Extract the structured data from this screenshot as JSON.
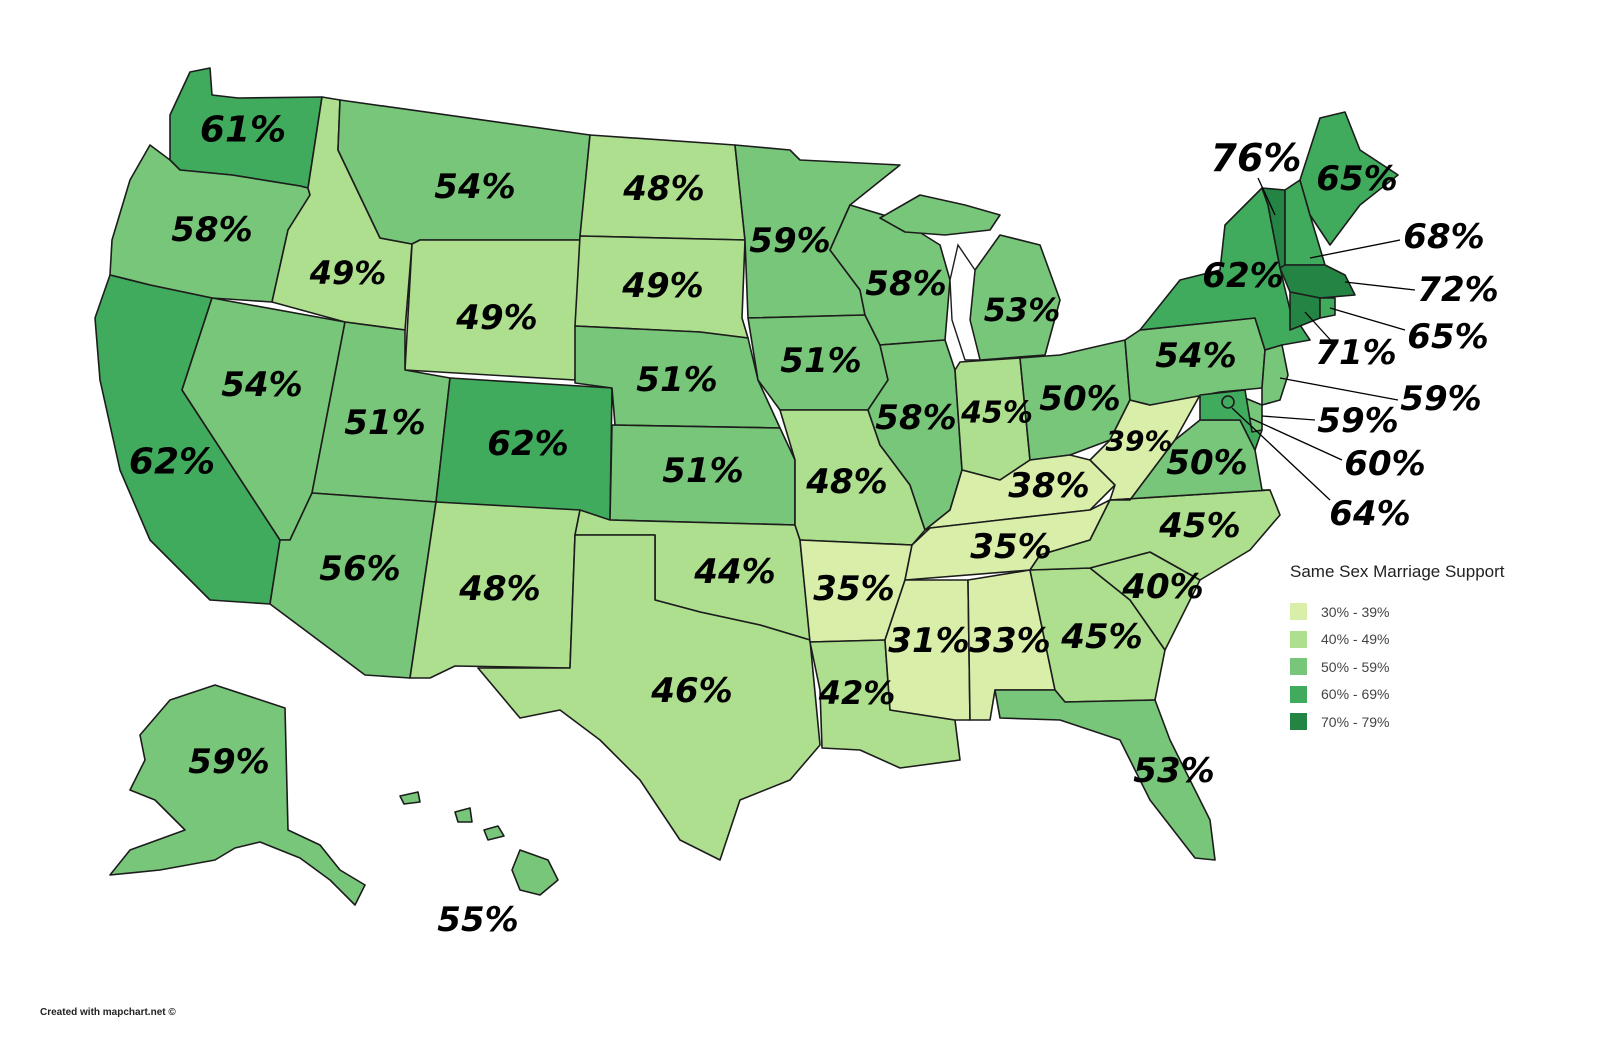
{
  "legend": {
    "title": "Same Sex Marriage Support",
    "bins": [
      {
        "label": "30% - 39%",
        "color": "#d9efa9"
      },
      {
        "label": "40% - 49%",
        "color": "#addf8e"
      },
      {
        "label": "50% - 59%",
        "color": "#78c679"
      },
      {
        "label": "60% - 69%",
        "color": "#41ab5d"
      },
      {
        "label": "70% - 79%",
        "color": "#238443"
      }
    ]
  },
  "credit": "Created with mapchart.net ©",
  "states": {
    "WA": {
      "value": "61%",
      "bin": 3
    },
    "OR": {
      "value": "58%",
      "bin": 2
    },
    "CA": {
      "value": "62%",
      "bin": 3
    },
    "ID": {
      "value": "49%",
      "bin": 1
    },
    "NV": {
      "value": "54%",
      "bin": 2
    },
    "MT": {
      "value": "54%",
      "bin": 2
    },
    "WY": {
      "value": "49%",
      "bin": 1
    },
    "UT": {
      "value": "51%",
      "bin": 2
    },
    "AZ": {
      "value": "56%",
      "bin": 2
    },
    "CO": {
      "value": "62%",
      "bin": 3
    },
    "NM": {
      "value": "48%",
      "bin": 1
    },
    "ND": {
      "value": "48%",
      "bin": 1
    },
    "SD": {
      "value": "49%",
      "bin": 1
    },
    "NE": {
      "value": "51%",
      "bin": 2
    },
    "KS": {
      "value": "51%",
      "bin": 2
    },
    "OK": {
      "value": "44%",
      "bin": 1
    },
    "TX": {
      "value": "46%",
      "bin": 1
    },
    "MN": {
      "value": "59%",
      "bin": 2
    },
    "IA": {
      "value": "51%",
      "bin": 2
    },
    "MO": {
      "value": "48%",
      "bin": 1
    },
    "AR": {
      "value": "35%",
      "bin": 0
    },
    "LA": {
      "value": "42%",
      "bin": 1
    },
    "WI": {
      "value": "58%",
      "bin": 2
    },
    "IL": {
      "value": "58%",
      "bin": 2
    },
    "MI": {
      "value": "53%",
      "bin": 2
    },
    "IN": {
      "value": "45%",
      "bin": 1
    },
    "OH": {
      "value": "50%",
      "bin": 2
    },
    "KY": {
      "value": "38%",
      "bin": 0
    },
    "TN": {
      "value": "35%",
      "bin": 0
    },
    "MS": {
      "value": "31%",
      "bin": 0
    },
    "AL": {
      "value": "33%",
      "bin": 0
    },
    "GA": {
      "value": "45%",
      "bin": 1
    },
    "FL": {
      "value": "53%",
      "bin": 2
    },
    "SC": {
      "value": "40%",
      "bin": 1
    },
    "NC": {
      "value": "45%",
      "bin": 1
    },
    "VA": {
      "value": "50%",
      "bin": 2
    },
    "WV": {
      "value": "39%",
      "bin": 0
    },
    "PA": {
      "value": "54%",
      "bin": 2
    },
    "NY": {
      "value": "62%",
      "bin": 3
    },
    "VT": {
      "value": "76%",
      "bin": 4
    },
    "NH": {
      "value": "68%",
      "bin": 3
    },
    "ME": {
      "value": "65%",
      "bin": 3
    },
    "MA": {
      "value": "72%",
      "bin": 4
    },
    "RI": {
      "value": "65%",
      "bin": 3
    },
    "CT": {
      "value": "71%",
      "bin": 4
    },
    "NJ": {
      "value": "59%",
      "bin": 2
    },
    "DE": {
      "value": "59%",
      "bin": 2
    },
    "MD": {
      "value": "60%",
      "bin": 3
    },
    "DC": {
      "value": "64%",
      "bin": 3
    },
    "AK": {
      "value": "59%",
      "bin": 2
    },
    "HI": {
      "value": "55%",
      "bin": 2
    }
  }
}
